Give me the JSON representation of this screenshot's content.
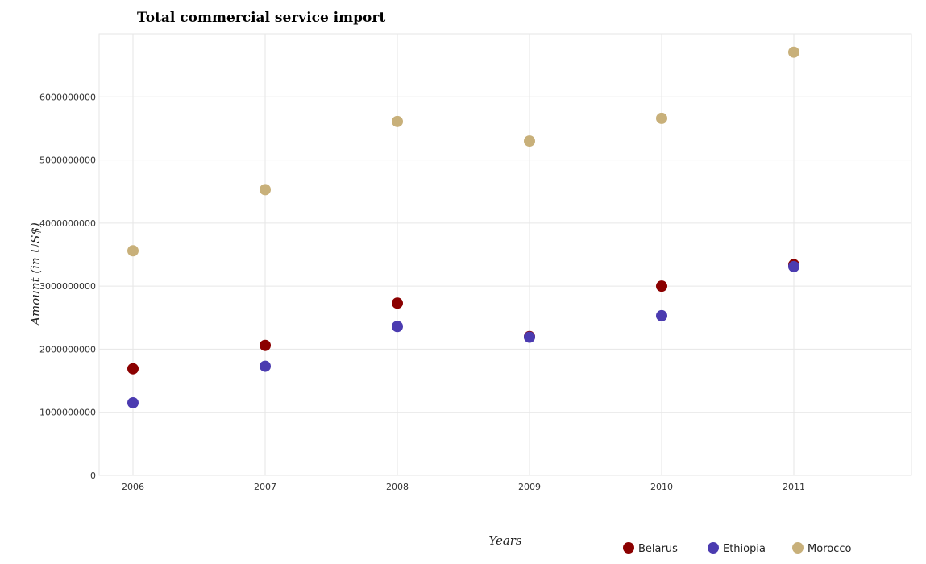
{
  "chart_data": {
    "type": "scatter",
    "title": "Total commercial service import",
    "xlabel": "Years",
    "ylabel": "Amount (in US$)",
    "x": [
      "2006",
      "2007",
      "2008",
      "2009",
      "2010",
      "2011"
    ],
    "ylim": [
      0,
      7000000000
    ],
    "yticks": [
      0,
      1000000000,
      2000000000,
      3000000000,
      4000000000,
      5000000000,
      6000000000
    ],
    "ytick_labels": [
      "0",
      "1000000000",
      "2000000000",
      "3000000000",
      "4000000000",
      "5000000000",
      "6000000000"
    ],
    "grid": true,
    "legend_position": "bottom-right",
    "series": [
      {
        "name": "Belarus",
        "color": "#8b0000",
        "values": [
          1690000000,
          2060000000,
          2730000000,
          2200000000,
          3000000000,
          3340000000
        ]
      },
      {
        "name": "Ethiopia",
        "color": "#4b3bb0",
        "values": [
          1150000000,
          1730000000,
          2360000000,
          2190000000,
          2530000000,
          3310000000
        ]
      },
      {
        "name": "Morocco",
        "color": "#c8b07a",
        "values": [
          3560000000,
          4530000000,
          5610000000,
          5300000000,
          5660000000,
          6710000000
        ]
      }
    ]
  }
}
